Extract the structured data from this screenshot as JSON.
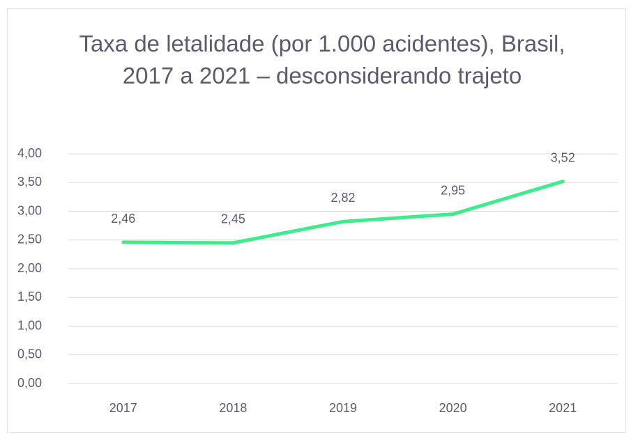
{
  "chart_data": {
    "type": "line",
    "title": "Taxa de letalidade (por 1.000 acidentes), Brasil, 2017 a 2021 – desconsiderando trajeto",
    "categories": [
      "2017",
      "2018",
      "2019",
      "2020",
      "2021"
    ],
    "values": [
      2.46,
      2.45,
      2.82,
      2.95,
      3.52
    ],
    "value_labels": [
      "2,46",
      "2,45",
      "2,82",
      "2,95",
      "3,52"
    ],
    "color": "#3fec8c",
    "ylim": [
      0,
      4
    ],
    "yticks": [
      {
        "value": 0,
        "label": "0,00"
      },
      {
        "value": 0.5,
        "label": "0,50"
      },
      {
        "value": 1,
        "label": "1,00"
      },
      {
        "value": 1.5,
        "label": "1,50"
      },
      {
        "value": 2,
        "label": "2,00"
      },
      {
        "value": 2.5,
        "label": "2,50"
      },
      {
        "value": 3,
        "label": "3,00"
      },
      {
        "value": 3.5,
        "label": "3,50"
      },
      {
        "value": 4,
        "label": "4,00"
      }
    ],
    "grid": true
  }
}
